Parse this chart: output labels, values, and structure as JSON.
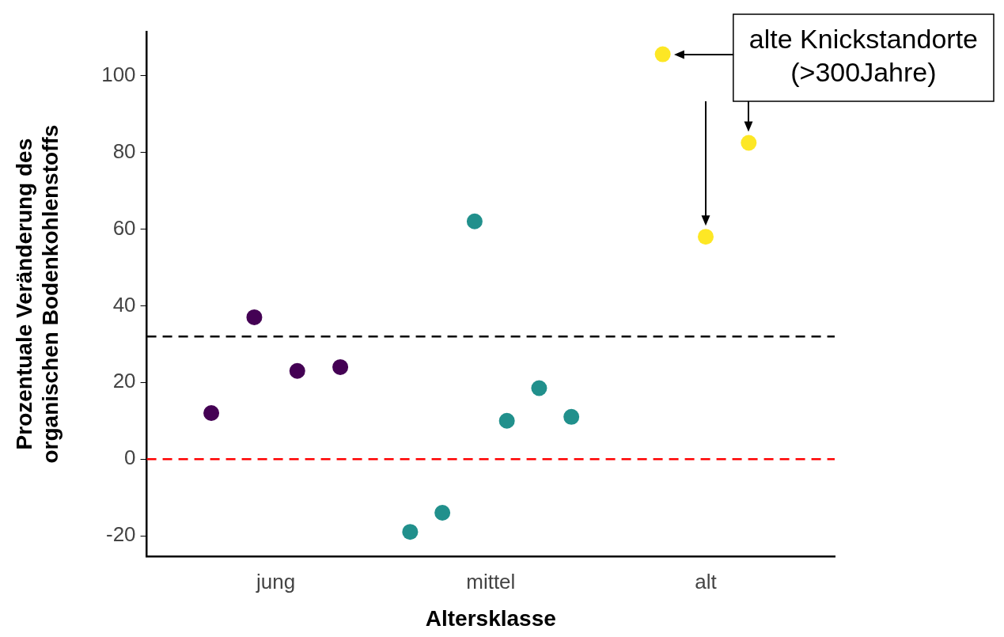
{
  "chart_data": {
    "type": "scatter",
    "xlabel": "Altersklasse",
    "ylabel": "Prozentuale Veränderung des\norganischen Bodenkohlenstoffs",
    "series": [
      {
        "color": "#440154",
        "x": [
          "jung",
          "jung",
          "jung",
          "jung"
        ],
        "values": [
          12,
          37,
          23,
          24
        ]
      },
      {
        "color": "#21908c",
        "x": [
          "mittel",
          "mittel",
          "mittel",
          "mittel",
          "mittel",
          "mittel"
        ],
        "values": [
          -19,
          -14,
          62,
          10,
          18.5,
          11
        ]
      },
      {
        "color": "#fde725",
        "x": [
          "alt",
          "alt",
          "alt"
        ],
        "values": [
          105.6,
          58,
          82.5
        ]
      }
    ],
    "categories": [
      "jung",
      "mittel",
      "alt"
    ],
    "ylim": [
      -25.4,
      111.5
    ],
    "yticks": [
      -20,
      0,
      20,
      40,
      60,
      80,
      100
    ],
    "ref_lines": [
      {
        "axis": "y",
        "value": 32,
        "color": "#000000",
        "line_style": "dashed"
      },
      {
        "axis": "y",
        "value": 0,
        "color": "#ff0000",
        "line_style": "dashed"
      }
    ],
    "annotations": [
      "alte Knickstandorte\n(>300Jahre)"
    ],
    "grid": false,
    "legend": false,
    "marker": "circle"
  }
}
